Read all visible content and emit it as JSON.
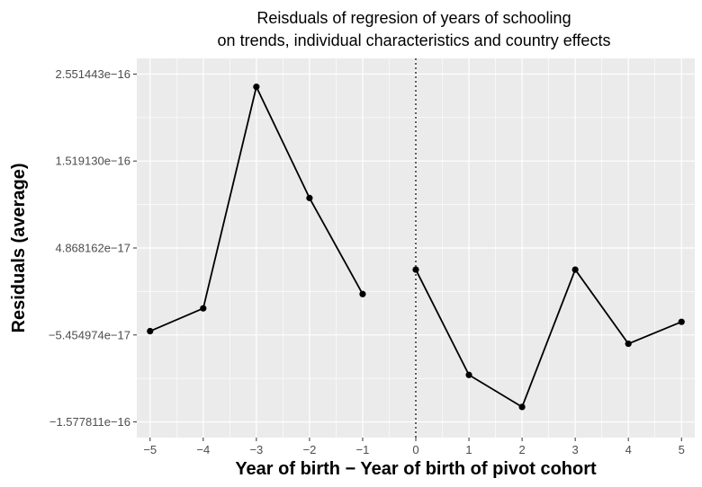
{
  "chart_data": {
    "type": "line",
    "title_lines": [
      "Reisduals of regresion of years of schooling",
      "on trends, individual characteristics and country effects"
    ],
    "xlabel": "Year of birth − Year of birth of pivot cohort",
    "ylabel": "Residuals (average)",
    "x_ticks": [
      "−5",
      "−4",
      "−3",
      "−2",
      "−1",
      "0",
      "1",
      "2",
      "3",
      "4",
      "5"
    ],
    "x_tick_values": [
      -5,
      -4,
      -3,
      -2,
      -1,
      0,
      1,
      2,
      3,
      4,
      5
    ],
    "y_ticks": [
      "2.551443e−16",
      "1.519130e−16",
      "4.868162e−17",
      "−5.454974e−17",
      "−1.577811e−16"
    ],
    "y_tick_values": [
      2.551443e-16,
      1.51913e-16,
      4.868162e-17,
      -5.454974e-17,
      -1.577811e-16
    ],
    "xlim": [
      -5.25,
      5.25
    ],
    "ylim": [
      -1.577811e-16,
      2.551443e-16
    ],
    "vline_x": 0,
    "grid": true,
    "series": [
      {
        "segments": [
          {
            "x": [
              -5,
              -4,
              -3,
              -2,
              -1
            ],
            "y": [
              -5e-17,
              -2.3e-17,
              2.4e-16,
              1.08e-16,
              -6e-18
            ]
          },
          {
            "x": [
              0,
              1,
              2,
              3,
              4,
              5
            ],
            "y": [
              2.3e-17,
              -1.02e-16,
              -1.4e-16,
              2.3e-17,
              -6.5e-17,
              -3.9e-17
            ]
          }
        ]
      }
    ]
  }
}
